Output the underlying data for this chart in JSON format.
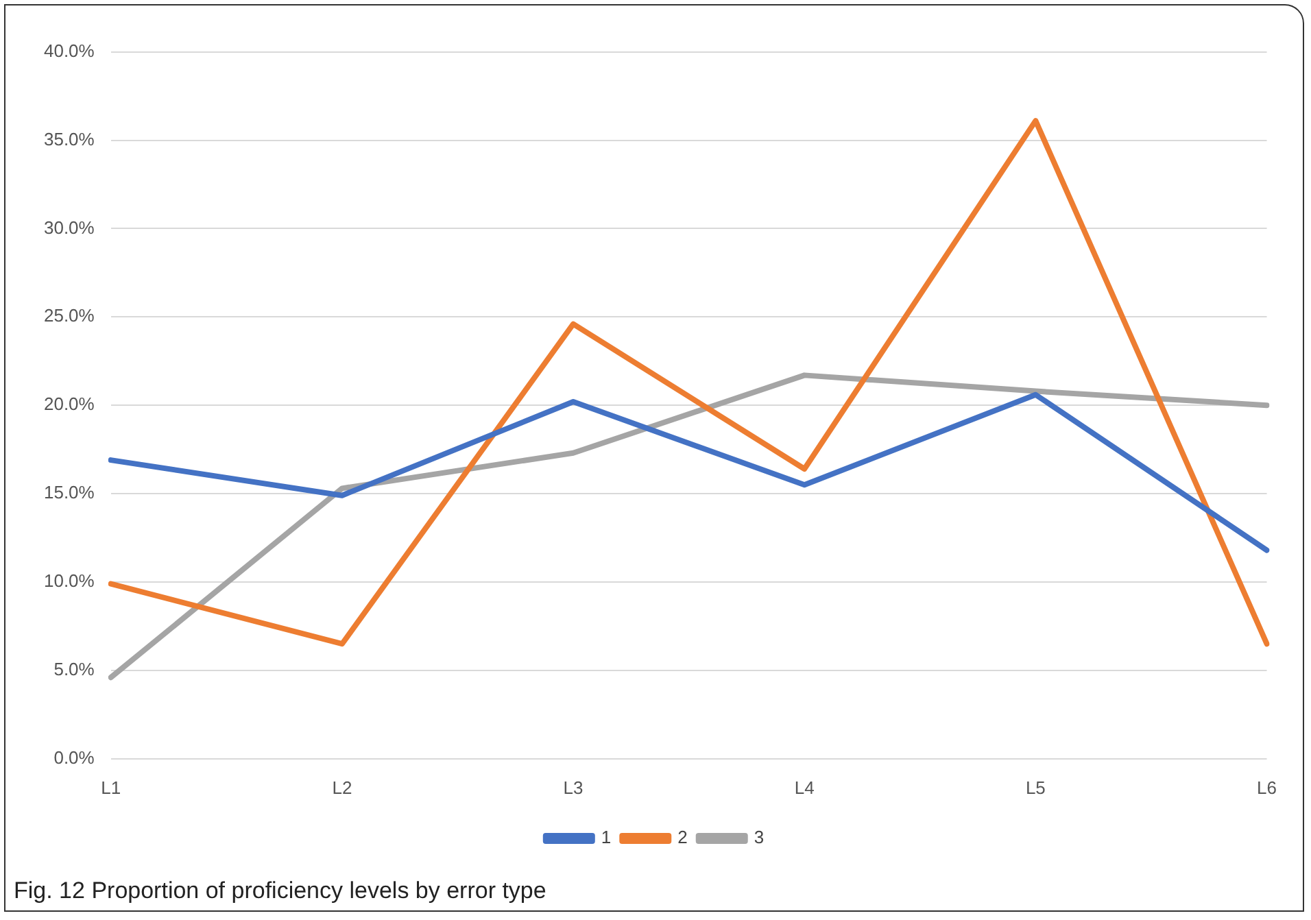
{
  "chart_data": {
    "type": "line",
    "categories": [
      "L1",
      "L2",
      "L3",
      "L4",
      "L5",
      "L6"
    ],
    "series": [
      {
        "name": "1",
        "color": "#4472c4",
        "values": [
          16.9,
          14.9,
          20.2,
          15.5,
          20.6,
          11.8
        ]
      },
      {
        "name": "2",
        "color": "#ed7d31",
        "values": [
          9.9,
          6.5,
          24.6,
          16.4,
          36.1,
          6.5
        ]
      },
      {
        "name": "3",
        "color": "#a5a5a5",
        "values": [
          4.6,
          15.3,
          17.3,
          21.7,
          20.8,
          20.0
        ]
      }
    ],
    "ylim": [
      0,
      40
    ],
    "yticks": [
      {
        "value": 0,
        "label": "0.0%"
      },
      {
        "value": 5,
        "label": "5.0%"
      },
      {
        "value": 10,
        "label": "10.0%"
      },
      {
        "value": 15,
        "label": "15.0%"
      },
      {
        "value": 20,
        "label": "20.0%"
      },
      {
        "value": 25,
        "label": "25.0%"
      },
      {
        "value": 30,
        "label": "30.0%"
      },
      {
        "value": 35,
        "label": "35.0%"
      },
      {
        "value": 40,
        "label": "40.0%"
      }
    ],
    "grid": "y",
    "legend": "bottom",
    "marker": "none",
    "line_style": "solid",
    "annotations": [
      "Fig. 12 Proportion of proficiency levels by error type"
    ]
  }
}
